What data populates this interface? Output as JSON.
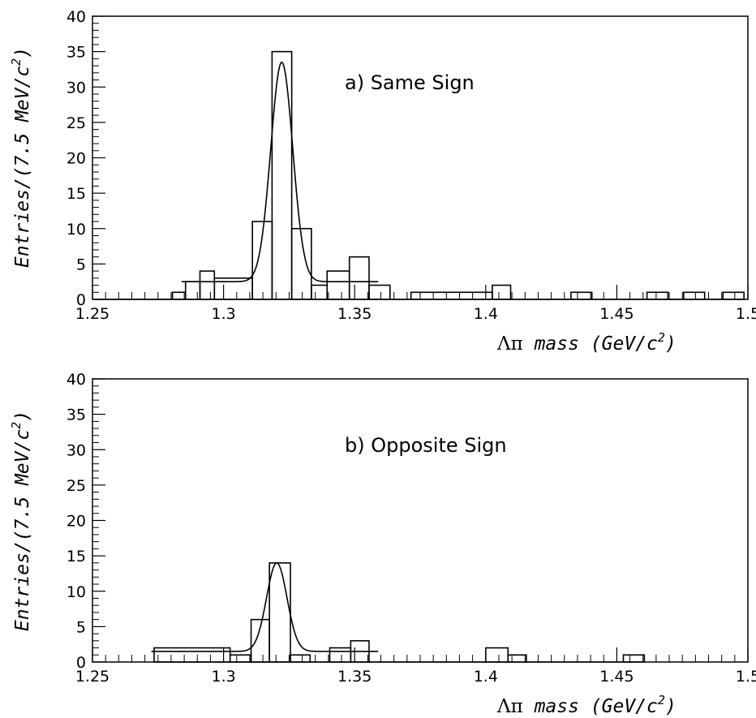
{
  "chart_data": [
    {
      "type": "bar",
      "panel": "a",
      "annotation": "a)  Same Sign",
      "xlabel_greek": "Λπ",
      "xlabel": " mass  (GeV/c",
      "xlabel_sup": "2",
      "xlabel_close": ")",
      "ylabel": "Entries/(7.5 MeV/c",
      "ylabel_sup": "2",
      "ylabel_close": ")",
      "xlim": [
        1.25,
        1.5
      ],
      "ylim": [
        0,
        40
      ],
      "xticks": [
        1.25,
        1.3,
        1.35,
        1.4,
        1.45,
        1.5
      ],
      "xtick_labels": [
        "1.25",
        "1.3",
        "1.35",
        "1.4",
        "1.45",
        "1.5"
      ],
      "yticks": [
        0,
        5,
        10,
        15,
        20,
        25,
        30,
        35,
        40
      ],
      "ytick_labels": [
        "0",
        "5",
        "10",
        "15",
        "20",
        "25",
        "30",
        "35",
        "40"
      ],
      "histogram": [
        {
          "x0": 1.2505,
          "x1": 1.2805,
          "y": 0
        },
        {
          "x0": 1.2805,
          "x1": 1.2855,
          "y": 1
        },
        {
          "x0": 1.2855,
          "x1": 1.291,
          "y": 2.5
        },
        {
          "x0": 1.291,
          "x1": 1.2965,
          "y": 4
        },
        {
          "x0": 1.2965,
          "x1": 1.311,
          "y": 3
        },
        {
          "x0": 1.311,
          "x1": 1.3185,
          "y": 11
        },
        {
          "x0": 1.3185,
          "x1": 1.326,
          "y": 35
        },
        {
          "x0": 1.326,
          "x1": 1.3335,
          "y": 10
        },
        {
          "x0": 1.3335,
          "x1": 1.3395,
          "y": 2
        },
        {
          "x0": 1.3395,
          "x1": 1.348,
          "y": 4
        },
        {
          "x0": 1.348,
          "x1": 1.3555,
          "y": 6
        },
        {
          "x0": 1.3555,
          "x1": 1.3635,
          "y": 2
        },
        {
          "x0": 1.3635,
          "x1": 1.3715,
          "y": 0
        },
        {
          "x0": 1.3715,
          "x1": 1.4025,
          "y": 1
        },
        {
          "x0": 1.4025,
          "x1": 1.4095,
          "y": 2
        },
        {
          "x0": 1.4095,
          "x1": 1.4325,
          "y": 0
        },
        {
          "x0": 1.4325,
          "x1": 1.4405,
          "y": 1
        },
        {
          "x0": 1.4405,
          "x1": 1.4615,
          "y": 0
        },
        {
          "x0": 1.4615,
          "x1": 1.4695,
          "y": 1
        },
        {
          "x0": 1.4695,
          "x1": 1.4755,
          "y": 0
        },
        {
          "x0": 1.4755,
          "x1": 1.4835,
          "y": 1
        },
        {
          "x0": 1.4835,
          "x1": 1.4905,
          "y": 0
        },
        {
          "x0": 1.4905,
          "x1": 1.4985,
          "y": 1
        }
      ],
      "fit": {
        "type": "gaussian_plus_constant",
        "mean": 1.3222,
        "sigma": 0.0042,
        "amplitude": 31,
        "constant": 2.5,
        "xmin": 1.284,
        "xmax": 1.359
      }
    },
    {
      "type": "bar",
      "panel": "b",
      "annotation": "b)  Opposite Sign",
      "xlabel_greek": "Λπ",
      "xlabel": " mass  (GeV/c",
      "xlabel_sup": "2",
      "xlabel_close": ")",
      "ylabel": "Entries/(7.5 MeV/c",
      "ylabel_sup": "2",
      "ylabel_close": ")",
      "xlim": [
        1.25,
        1.5
      ],
      "ylim": [
        0,
        40
      ],
      "xticks": [
        1.25,
        1.3,
        1.35,
        1.4,
        1.45,
        1.5
      ],
      "xtick_labels": [
        "1.25",
        "1.3",
        "1.35",
        "1.4",
        "1.45",
        "1.5"
      ],
      "yticks": [
        0,
        5,
        10,
        15,
        20,
        25,
        30,
        35,
        40
      ],
      "ytick_labels": [
        "0",
        "5",
        "10",
        "15",
        "20",
        "25",
        "30",
        "35",
        "40"
      ],
      "histogram": [
        {
          "x0": 1.2735,
          "x1": 1.3025,
          "y": 2
        },
        {
          "x0": 1.3025,
          "x1": 1.3105,
          "y": 1
        },
        {
          "x0": 1.3105,
          "x1": 1.3175,
          "y": 6
        },
        {
          "x0": 1.3175,
          "x1": 1.3255,
          "y": 14
        },
        {
          "x0": 1.3255,
          "x1": 1.333,
          "y": 1
        },
        {
          "x0": 1.333,
          "x1": 1.3405,
          "y": 0
        },
        {
          "x0": 1.3405,
          "x1": 1.3485,
          "y": 2
        },
        {
          "x0": 1.3485,
          "x1": 1.3555,
          "y": 3
        },
        {
          "x0": 1.3555,
          "x1": 1.4,
          "y": 0
        },
        {
          "x0": 1.4,
          "x1": 1.4085,
          "y": 2
        },
        {
          "x0": 1.4085,
          "x1": 1.4155,
          "y": 1
        },
        {
          "x0": 1.4155,
          "x1": 1.4525,
          "y": 0
        },
        {
          "x0": 1.4525,
          "x1": 1.4605,
          "y": 1
        }
      ],
      "fit": {
        "type": "gaussian_plus_constant",
        "mean": 1.3203,
        "sigma": 0.0039,
        "amplitude": 12.5,
        "constant": 1.5,
        "xmin": 1.2725,
        "xmax": 1.359
      }
    }
  ]
}
